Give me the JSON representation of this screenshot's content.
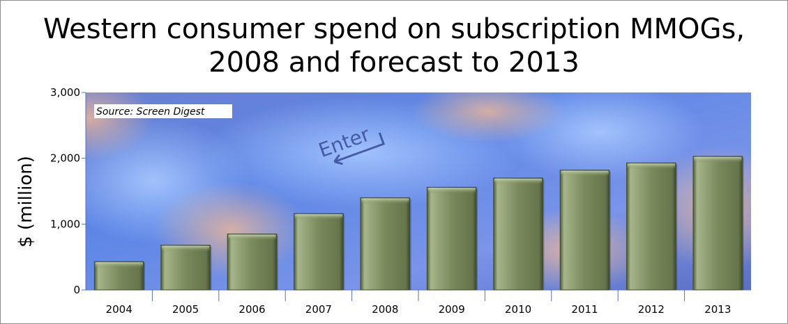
{
  "chart_data": {
    "type": "bar",
    "title": "Western consumer spend on subscription MMOGs,\n2008 and forecast to 2013",
    "ylabel": "$ (million)",
    "xlabel": "",
    "annotation": "Source: Screen Digest",
    "categories": [
      "2004",
      "2005",
      "2006",
      "2007",
      "2008",
      "2009",
      "2010",
      "2011",
      "2012",
      "2013"
    ],
    "values": [
      430,
      680,
      850,
      1160,
      1400,
      1560,
      1700,
      1820,
      1930,
      2030
    ],
    "ylim": [
      0,
      3000
    ],
    "yticks": [
      0,
      1000,
      2000,
      3000
    ],
    "ytick_labels": [
      "0",
      "1,000",
      "2,000",
      "3,000"
    ],
    "grid": false,
    "legend": "none",
    "colors": {
      "bar": "#7a8a5c",
      "bar_light": "#a6b58a",
      "bar_dark": "#4e5a38",
      "axis": "#5a6fb4"
    },
    "background": "keyboard-enter-key-photo"
  }
}
